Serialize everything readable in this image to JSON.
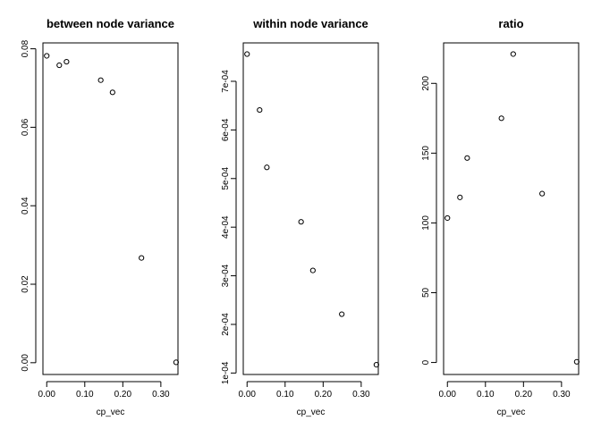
{
  "chart_data": [
    {
      "type": "scatter",
      "title": "between node variance",
      "xlabel": "cp_vec",
      "ylabel": "",
      "xlim": [
        -0.01,
        0.345
      ],
      "ylim": [
        -0.003,
        0.0815
      ],
      "x_ticks": [
        0.0,
        0.1,
        0.2,
        0.3
      ],
      "x_tick_labels": [
        "0.00",
        "0.10",
        "0.20",
        "0.30"
      ],
      "y_ticks": [
        0.0,
        0.02,
        0.04,
        0.06,
        0.08
      ],
      "y_tick_labels": [
        "0.00",
        "0.02",
        "0.04",
        "0.06",
        "0.08"
      ],
      "x": [
        0.0,
        0.033,
        0.052,
        0.142,
        0.173,
        0.249,
        0.34
      ],
      "y": [
        0.0782,
        0.0758,
        0.0767,
        0.072,
        0.0689,
        0.0267,
        0.0001
      ],
      "grid": false,
      "marker": "open-circle"
    },
    {
      "type": "scatter",
      "title": "within node variance",
      "xlabel": "cp_vec",
      "ylabel": "",
      "xlim": [
        -0.01,
        0.345
      ],
      "ylim": [
        9.7e-05,
        0.000779
      ],
      "x_ticks": [
        0.0,
        0.1,
        0.2,
        0.3
      ],
      "x_tick_labels": [
        "0.00",
        "0.10",
        "0.20",
        "0.30"
      ],
      "y_ticks": [
        0.0001,
        0.0002,
        0.0003,
        0.0004,
        0.0005,
        0.0006,
        0.0007
      ],
      "y_tick_labels": [
        "1e-04",
        "2e-04",
        "3e-04",
        "4e-04",
        "5e-04",
        "6e-04",
        "7e-04"
      ],
      "x": [
        0.0,
        0.033,
        0.052,
        0.142,
        0.173,
        0.249,
        0.34
      ],
      "y": [
        0.000756,
        0.000641,
        0.000523,
        0.000411,
        0.000311,
        0.000221,
        0.000117
      ],
      "grid": false,
      "marker": "open-circle"
    },
    {
      "type": "scatter",
      "title": "ratio",
      "xlabel": "cp_vec",
      "ylabel": "",
      "xlim": [
        -0.01,
        0.345
      ],
      "ylim": [
        -8.6,
        229
      ],
      "x_ticks": [
        0.0,
        0.1,
        0.2,
        0.3
      ],
      "x_tick_labels": [
        "0.00",
        "0.10",
        "0.20",
        "0.30"
      ],
      "y_ticks": [
        0,
        50,
        100,
        150,
        200
      ],
      "y_tick_labels": [
        "0",
        "50",
        "100",
        "150",
        "200"
      ],
      "x": [
        0.0,
        0.033,
        0.052,
        0.142,
        0.173,
        0.249,
        0.34
      ],
      "y": [
        103.5,
        118.3,
        146.5,
        175.0,
        221.0,
        121.0,
        0.5
      ],
      "grid": false,
      "marker": "open-circle"
    }
  ]
}
